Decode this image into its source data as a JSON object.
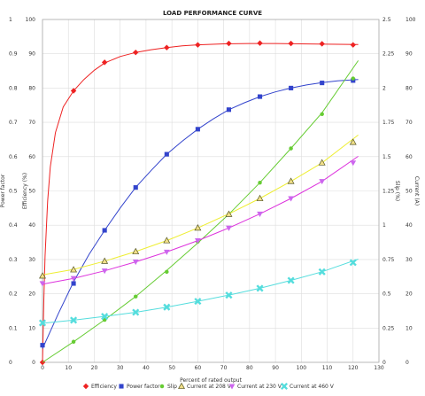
{
  "chart_data": {
    "type": "line",
    "title": "LOAD PERFORMANCE CURVE",
    "xlabel": "Percent of rated output",
    "xlim": [
      0,
      130
    ],
    "x_ticks": [
      "0",
      "10",
      "20",
      "30",
      "40",
      "50",
      "60",
      "70",
      "80",
      "90",
      "100",
      "110",
      "120",
      "130"
    ],
    "left_axes": [
      {
        "label": "Power factor",
        "ticks": [
          "0",
          "0.1",
          "0.2",
          "0.3",
          "0.4",
          "0.5",
          "0.6",
          "0.7",
          "0.8",
          "0.9",
          "1"
        ],
        "ylim": [
          0,
          1
        ]
      },
      {
        "label": "Efficiency (%)",
        "ticks": [
          "0",
          "10",
          "20",
          "30",
          "40",
          "50",
          "60",
          "70",
          "80",
          "90",
          "100"
        ],
        "ylim": [
          0,
          100
        ]
      }
    ],
    "right_axes": [
      {
        "label": "Slip (%)",
        "ticks": [
          "0",
          "0.25",
          "0.5",
          "0.75",
          "1",
          "1.25",
          "1.5",
          "1.75",
          "2",
          "2.25",
          "2.5"
        ],
        "ylim": [
          0,
          2.5
        ]
      },
      {
        "label": "Current (A)",
        "ticks": [
          "0",
          "10",
          "20",
          "30",
          "40",
          "50",
          "60",
          "70",
          "80",
          "90",
          "100"
        ],
        "ylim": [
          0,
          100
        ]
      }
    ],
    "grid": true,
    "legend_position": "bottom",
    "series": [
      {
        "name": "Efficiency",
        "axis": "efficiency",
        "color": "#ee2222",
        "marker": "diamond",
        "points": [
          [
            0,
            0
          ],
          [
            12,
            79.2
          ],
          [
            24,
            87.5
          ],
          [
            36,
            90.4
          ],
          [
            48,
            91.8
          ],
          [
            60,
            92.6
          ],
          [
            72,
            93.0
          ],
          [
            84,
            93.1
          ],
          [
            96,
            93.0
          ],
          [
            108,
            92.9
          ],
          [
            120,
            92.6
          ]
        ],
        "curve": [
          [
            0,
            0
          ],
          [
            0.5,
            18
          ],
          [
            1,
            31
          ],
          [
            2,
            47
          ],
          [
            3,
            57
          ],
          [
            5,
            67
          ],
          [
            8,
            74.5
          ],
          [
            12,
            79.2
          ],
          [
            16,
            82.5
          ],
          [
            20,
            85.2
          ],
          [
            24,
            87.3
          ],
          [
            30,
            89.2
          ],
          [
            36,
            90.4
          ],
          [
            42,
            91.2
          ],
          [
            48,
            91.8
          ],
          [
            54,
            92.3
          ],
          [
            60,
            92.6
          ],
          [
            70,
            92.9
          ],
          [
            80,
            93.0
          ],
          [
            90,
            93.0
          ],
          [
            100,
            92.9
          ],
          [
            110,
            92.8
          ],
          [
            122,
            92.7
          ]
        ]
      },
      {
        "name": "Power factor",
        "axis": "power_factor",
        "color": "#3344cc",
        "marker": "square",
        "points": [
          [
            0,
            0.05
          ],
          [
            12,
            0.23
          ],
          [
            24,
            0.385
          ],
          [
            36,
            0.51
          ],
          [
            48,
            0.607
          ],
          [
            60,
            0.68
          ],
          [
            72,
            0.737
          ],
          [
            84,
            0.775
          ],
          [
            96,
            0.8
          ],
          [
            108,
            0.815
          ],
          [
            120,
            0.822
          ]
        ],
        "curve": [
          [
            0,
            0.04
          ],
          [
            6,
            0.14
          ],
          [
            12,
            0.235
          ],
          [
            18,
            0.315
          ],
          [
            24,
            0.385
          ],
          [
            30,
            0.45
          ],
          [
            36,
            0.51
          ],
          [
            42,
            0.56
          ],
          [
            48,
            0.607
          ],
          [
            54,
            0.645
          ],
          [
            60,
            0.68
          ],
          [
            66,
            0.71
          ],
          [
            72,
            0.737
          ],
          [
            78,
            0.757
          ],
          [
            84,
            0.775
          ],
          [
            90,
            0.789
          ],
          [
            96,
            0.8
          ],
          [
            102,
            0.809
          ],
          [
            108,
            0.816
          ],
          [
            114,
            0.821
          ],
          [
            122,
            0.825
          ]
        ]
      },
      {
        "name": "Slip",
        "axis": "slip",
        "color": "#66cc33",
        "marker": "circle",
        "points": [
          [
            12,
            0.15
          ],
          [
            24,
            0.31
          ],
          [
            36,
            0.48
          ],
          [
            48,
            0.66
          ],
          [
            60,
            0.88
          ],
          [
            72,
            1.08
          ],
          [
            84,
            1.31
          ],
          [
            96,
            1.56
          ],
          [
            108,
            1.81
          ],
          [
            120,
            2.07
          ]
        ],
        "curve": [
          [
            0,
            0.0
          ],
          [
            12,
            0.15
          ],
          [
            24,
            0.31
          ],
          [
            36,
            0.48
          ],
          [
            48,
            0.67
          ],
          [
            60,
            0.87
          ],
          [
            72,
            1.08
          ],
          [
            84,
            1.31
          ],
          [
            96,
            1.56
          ],
          [
            108,
            1.82
          ],
          [
            122,
            2.2
          ]
        ]
      },
      {
        "name": "Current at 208 V",
        "axis": "current",
        "color": "#eeee33",
        "marker": "triangle-up",
        "marker_fill": "#f2e08a",
        "marker_stroke": "#555522",
        "points": [
          [
            0,
            25.2
          ],
          [
            12,
            27.0
          ],
          [
            24,
            29.5
          ],
          [
            36,
            32.3
          ],
          [
            48,
            35.5
          ],
          [
            60,
            39.2
          ],
          [
            72,
            43.2
          ],
          [
            84,
            47.8
          ],
          [
            96,
            52.8
          ],
          [
            108,
            58.2
          ],
          [
            120,
            64.2
          ]
        ],
        "curve": [
          [
            0,
            25.5
          ],
          [
            12,
            27.1
          ],
          [
            24,
            29.5
          ],
          [
            36,
            32.3
          ],
          [
            48,
            35.5
          ],
          [
            60,
            39.2
          ],
          [
            72,
            43.3
          ],
          [
            84,
            47.8
          ],
          [
            96,
            52.8
          ],
          [
            108,
            58.2
          ],
          [
            122,
            66.3
          ]
        ]
      },
      {
        "name": "Current at 230 V",
        "axis": "current",
        "color": "#dd33dd",
        "marker": "triangle-down",
        "marker_fill": "#cc66ee",
        "points": [
          [
            0,
            23.0
          ],
          [
            12,
            24.5
          ],
          [
            24,
            26.7
          ],
          [
            36,
            29.3
          ],
          [
            48,
            32.2
          ],
          [
            60,
            35.5
          ],
          [
            72,
            39.2
          ],
          [
            84,
            43.3
          ],
          [
            96,
            47.8
          ],
          [
            108,
            52.8
          ],
          [
            120,
            58.2
          ]
        ],
        "curve": [
          [
            0,
            22.8
          ],
          [
            12,
            24.5
          ],
          [
            24,
            26.7
          ],
          [
            36,
            29.3
          ],
          [
            48,
            32.2
          ],
          [
            60,
            35.5
          ],
          [
            72,
            39.2
          ],
          [
            84,
            43.3
          ],
          [
            96,
            47.8
          ],
          [
            108,
            52.8
          ],
          [
            122,
            60.1
          ]
        ]
      },
      {
        "name": "Current at 460 V",
        "axis": "current",
        "color": "#55dddd",
        "marker": "x",
        "points": [
          [
            0,
            11.5
          ],
          [
            12,
            12.3
          ],
          [
            24,
            13.4
          ],
          [
            36,
            14.6
          ],
          [
            48,
            16.1
          ],
          [
            60,
            17.8
          ],
          [
            72,
            19.6
          ],
          [
            84,
            21.6
          ],
          [
            96,
            23.9
          ],
          [
            108,
            26.4
          ],
          [
            120,
            29.1
          ]
        ],
        "curve": [
          [
            0,
            11.4
          ],
          [
            12,
            12.3
          ],
          [
            24,
            13.4
          ],
          [
            36,
            14.6
          ],
          [
            48,
            16.1
          ],
          [
            60,
            17.8
          ],
          [
            72,
            19.6
          ],
          [
            84,
            21.6
          ],
          [
            96,
            23.9
          ],
          [
            108,
            26.4
          ],
          [
            122,
            30.1
          ]
        ]
      }
    ]
  }
}
